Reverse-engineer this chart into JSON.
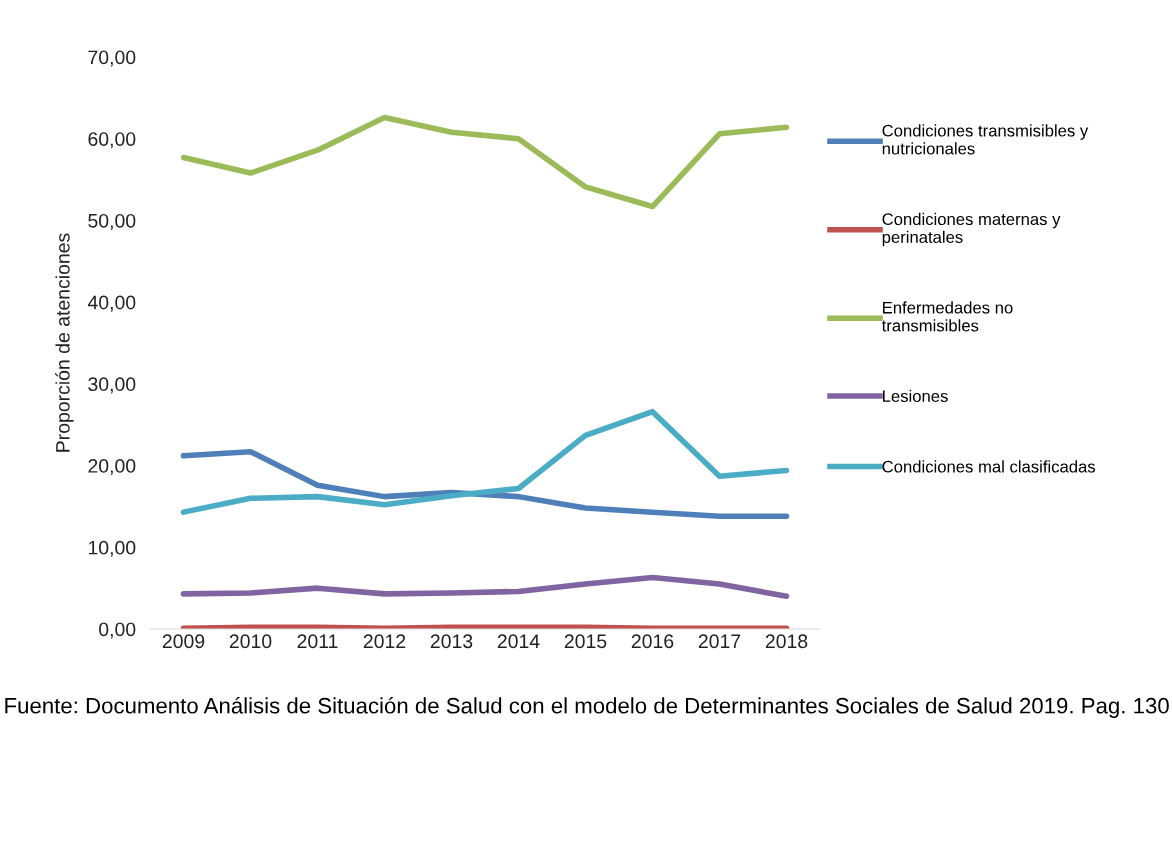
{
  "chart_data": {
    "type": "line",
    "ylabel": "Proporción de atenciones",
    "categories": [
      "2009",
      "2010",
      "2011",
      "2012",
      "2013",
      "2014",
      "2015",
      "2016",
      "2017",
      "2018"
    ],
    "series": [
      {
        "name": "Condiciones transmisibles y nutricionales",
        "color": "#4f7fb8",
        "values": [
          21.2,
          21.7,
          17.6,
          16.2,
          16.7,
          16.2,
          14.8,
          14.3,
          13.8,
          13.8
        ]
      },
      {
        "name": "Condiciones maternas y perinatales",
        "color": "#c0504d",
        "values": [
          0.1,
          0.2,
          0.2,
          0.1,
          0.2,
          0.2,
          0.2,
          0.1,
          0.1,
          0.1
        ]
      },
      {
        "name": "Enfermedades no transmisibles",
        "color": "#9bbb59",
        "values": [
          57.7,
          55.8,
          58.6,
          62.6,
          60.8,
          60.0,
          54.1,
          51.7,
          60.6,
          61.4
        ]
      },
      {
        "name": "Lesiones",
        "color": "#8064a2",
        "values": [
          4.3,
          4.4,
          5.0,
          4.3,
          4.4,
          4.6,
          5.5,
          6.3,
          5.5,
          4.0
        ]
      },
      {
        "name": "Condiciones mal clasificadas",
        "color": "#4bacc6",
        "values": [
          14.3,
          16.0,
          16.2,
          15.2,
          16.3,
          17.2,
          23.7,
          26.6,
          18.7,
          19.4
        ]
      }
    ],
    "ylim": [
      0,
      70
    ],
    "yticks": [
      {
        "value": 0,
        "label": "0,00"
      },
      {
        "value": 10,
        "label": "10,00"
      },
      {
        "value": 20,
        "label": "20,00"
      },
      {
        "value": 30,
        "label": "30,00"
      },
      {
        "value": 40,
        "label": "40,00"
      },
      {
        "value": 50,
        "label": "50,00"
      },
      {
        "value": 60,
        "label": "60,00"
      },
      {
        "value": 70,
        "label": "70,00"
      }
    ],
    "grid": false,
    "legend": "right",
    "marker": "none",
    "line_style": "solid",
    "annotations": [
      "Fuente: Documento Análisis de Situación de Salud con el modelo de Determinantes Sociales de Salud 2019. Pag. 130"
    ]
  }
}
